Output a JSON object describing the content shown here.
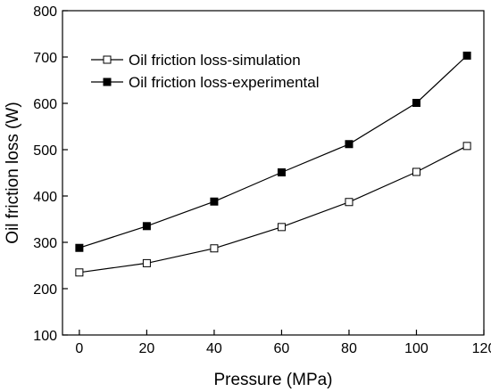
{
  "chart_data": {
    "type": "line",
    "title": "",
    "xlabel": "Pressure (MPa)",
    "ylabel": "Oil friction loss (W)",
    "xlim": [
      -5,
      120
    ],
    "ylim": [
      100,
      800
    ],
    "xticks": [
      0,
      20,
      40,
      60,
      80,
      100,
      120
    ],
    "yticks": [
      100,
      200,
      300,
      400,
      500,
      600,
      700,
      800
    ],
    "grid": false,
    "legend_position": "top-left",
    "series": [
      {
        "name": "Oil friction loss-simulation",
        "marker": "open-square",
        "color": "#000000",
        "x": [
          0,
          20,
          40,
          60,
          80,
          100,
          115
        ],
        "y": [
          235,
          255,
          287,
          333,
          387,
          452,
          508
        ]
      },
      {
        "name": "Oil friction loss-experimental",
        "marker": "filled-square",
        "color": "#000000",
        "x": [
          0,
          20,
          40,
          60,
          80,
          100,
          115
        ],
        "y": [
          288,
          335,
          388,
          451,
          512,
          601,
          703
        ]
      }
    ]
  }
}
